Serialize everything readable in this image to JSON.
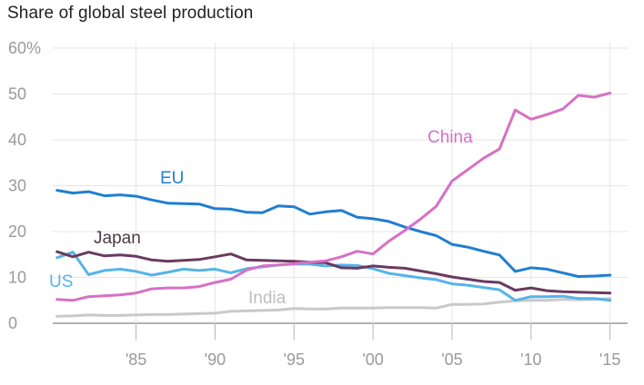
{
  "chart_data": {
    "type": "line",
    "title": "Share of global steel production",
    "y_unit_label": "60%",
    "yticks": [
      0,
      10,
      20,
      30,
      40,
      50,
      60
    ],
    "ytick_labels": [
      "0",
      "10",
      "20",
      "30",
      "40",
      "50",
      "60%"
    ],
    "xticks": [
      1985,
      1990,
      1995,
      2000,
      2005,
      2010,
      2015
    ],
    "xtick_labels": [
      "'85",
      "'90",
      "'95",
      "'00",
      "'05",
      "'10",
      "'15"
    ],
    "xlim": [
      1980,
      2015
    ],
    "ylim": [
      0,
      60
    ],
    "grid": true,
    "x": [
      1980,
      1981,
      1982,
      1983,
      1984,
      1985,
      1986,
      1987,
      1988,
      1989,
      1990,
      1991,
      1992,
      1993,
      1994,
      1995,
      1996,
      1997,
      1998,
      1999,
      2000,
      2001,
      2002,
      2003,
      2004,
      2005,
      2006,
      2007,
      2008,
      2009,
      2010,
      2011,
      2012,
      2013,
      2014,
      2015
    ],
    "series": [
      {
        "name": "China",
        "color": "#d670c6",
        "values": [
          5.2,
          5.0,
          5.8,
          6.0,
          6.2,
          6.6,
          7.5,
          7.7,
          7.7,
          8.0,
          8.9,
          9.6,
          11.6,
          12.5,
          12.7,
          13.0,
          13.3,
          13.6,
          14.5,
          15.7,
          15.1,
          17.9,
          20.2,
          22.7,
          25.5,
          31.0,
          33.5,
          36.0,
          38.0,
          46.5,
          44.5,
          45.5,
          46.7,
          49.7,
          49.3,
          50.2
        ]
      },
      {
        "name": "EU",
        "color": "#1f7fd0",
        "values": [
          29.0,
          28.4,
          28.7,
          27.8,
          28.0,
          27.7,
          26.9,
          26.2,
          26.1,
          26.0,
          25.0,
          24.9,
          24.2,
          24.1,
          25.6,
          25.4,
          23.8,
          24.3,
          24.6,
          23.1,
          22.8,
          22.2,
          21.0,
          20.0,
          19.1,
          17.2,
          16.6,
          15.7,
          14.9,
          11.3,
          12.1,
          11.8,
          11.0,
          10.2,
          10.3,
          10.5
        ]
      },
      {
        "name": "Japan",
        "color": "#6b3a5e",
        "values": [
          15.6,
          14.5,
          15.5,
          14.7,
          14.9,
          14.6,
          13.8,
          13.5,
          13.7,
          13.9,
          14.5,
          15.1,
          13.8,
          13.7,
          13.6,
          13.5,
          13.3,
          13.2,
          12.1,
          12.0,
          12.5,
          12.2,
          12.0,
          11.4,
          10.8,
          10.1,
          9.6,
          9.1,
          8.9,
          7.2,
          7.7,
          7.1,
          6.9,
          6.8,
          6.7,
          6.6
        ]
      },
      {
        "name": "US",
        "color": "#56b4e9",
        "values": [
          14.3,
          15.5,
          10.6,
          11.5,
          11.8,
          11.3,
          10.5,
          11.1,
          11.8,
          11.5,
          11.8,
          11.0,
          11.9,
          12.3,
          12.7,
          12.9,
          12.9,
          12.5,
          12.7,
          12.6,
          11.9,
          10.9,
          10.4,
          9.9,
          9.5,
          8.6,
          8.3,
          7.8,
          7.3,
          5.0,
          5.8,
          5.8,
          5.9,
          5.4,
          5.4,
          5.0
        ]
      },
      {
        "name": "India",
        "color": "#c9c9c9",
        "values": [
          1.5,
          1.6,
          1.8,
          1.7,
          1.7,
          1.8,
          1.9,
          1.9,
          2.0,
          2.1,
          2.2,
          2.6,
          2.7,
          2.8,
          2.9,
          3.2,
          3.1,
          3.1,
          3.3,
          3.3,
          3.3,
          3.4,
          3.4,
          3.4,
          3.3,
          4.1,
          4.1,
          4.2,
          4.6,
          4.9,
          5.0,
          5.0,
          5.2,
          5.1,
          5.2,
          5.4
        ]
      }
    ]
  }
}
